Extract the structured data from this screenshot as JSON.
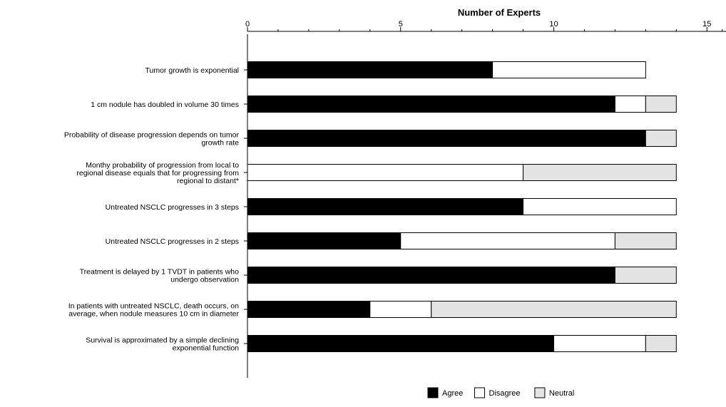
{
  "chart_data": {
    "type": "bar",
    "stacked": true,
    "orientation": "horizontal",
    "title": "Number of Experts",
    "xlim": [
      0,
      15
    ],
    "xticks": [
      0,
      5,
      10,
      15
    ],
    "grid": false,
    "legend_placement": "bottom",
    "categories": [
      [
        "Tumor growth is exponential"
      ],
      [
        "1 cm nodule has doubled in volume 30 times"
      ],
      [
        "Probability of disease progression depends on tumor",
        "growth rate"
      ],
      [
        "Monthy probability of progression from local to",
        "regional disease equals that for progressing from",
        "regional to distant*"
      ],
      [
        "Untreated NSCLC progresses in 3 steps"
      ],
      [
        "Untreated NSCLC progresses in 2 steps"
      ],
      [
        "Treatment is delayed by 1 TVDT in patients who",
        "undergo observation"
      ],
      [
        "In patients with untreated NSCLC, death occurs, on",
        "average, when nodule measures 10 cm in diameter"
      ],
      [
        "Survival is approximated by a simple declining",
        "exponential function"
      ]
    ],
    "series": [
      {
        "name": "Agree",
        "color": "#000000",
        "values": [
          8,
          12,
          13,
          0,
          9,
          5,
          12,
          4,
          10
        ]
      },
      {
        "name": "Disagree",
        "color": "#ffffff",
        "values": [
          5,
          1,
          0,
          9,
          5,
          7,
          0,
          2,
          3
        ]
      },
      {
        "name": "Neutral",
        "color": "#e3e3e3",
        "values": [
          0,
          1,
          1,
          5,
          0,
          2,
          2,
          8,
          1
        ]
      }
    ]
  }
}
